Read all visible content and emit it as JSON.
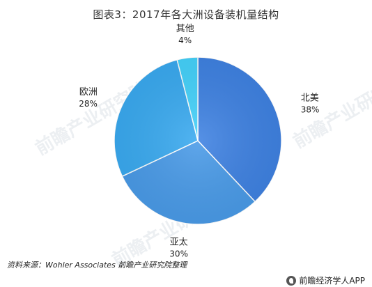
{
  "chart_data": {
    "type": "pie",
    "title": "图表3：2017年各大洲设备装机量结构",
    "slices": [
      {
        "label": "北美",
        "value": 38,
        "value_label": "38%",
        "color": "#3f82e2"
      },
      {
        "label": "亚太",
        "value": 30,
        "value_label": "30%",
        "color": "#4a9be8"
      },
      {
        "label": "欧洲",
        "value": 28,
        "value_label": "28%",
        "color": "#3aaaf0"
      },
      {
        "label": "其他",
        "value": 4,
        "value_label": "4%",
        "color": "#45d2fb"
      }
    ],
    "start_angle_deg": 0,
    "direction": "clockwise"
  },
  "footer": {
    "source_label": "资料来源：",
    "source_text": "Wohler Associates 前瞻产业研究院整理",
    "brand": "前瞻经济学人APP"
  },
  "watermark": {
    "text": "前瞻产业研究院"
  }
}
